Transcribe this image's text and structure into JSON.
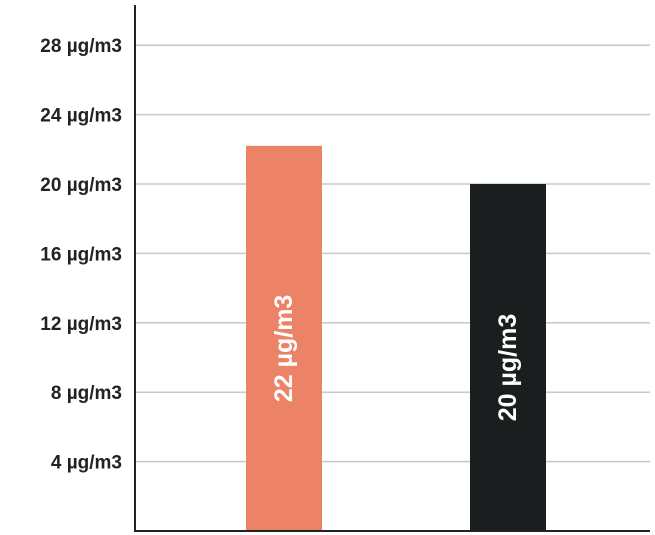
{
  "chart_data": {
    "type": "bar",
    "title": "",
    "xlabel": "",
    "ylabel": "",
    "unit": "µg/m3",
    "categories": [
      "",
      ""
    ],
    "values": [
      22.2,
      20.0
    ],
    "data_labels": [
      "22 µg/m3",
      "20 µg/m3"
    ],
    "colors": [
      "#ec8266",
      "#1b1e1e"
    ],
    "ylim": [
      0,
      30
    ],
    "yticks": [
      4,
      8,
      12,
      16,
      20,
      24,
      28
    ],
    "ytick_labels": [
      "4 µg/m3",
      "8 µg/m3",
      "12 µg/m3",
      "16 µg/m3",
      "20 µg/m3",
      "24 µg/m3",
      "28 µg/m3"
    ],
    "grid": true,
    "legend": "none"
  }
}
